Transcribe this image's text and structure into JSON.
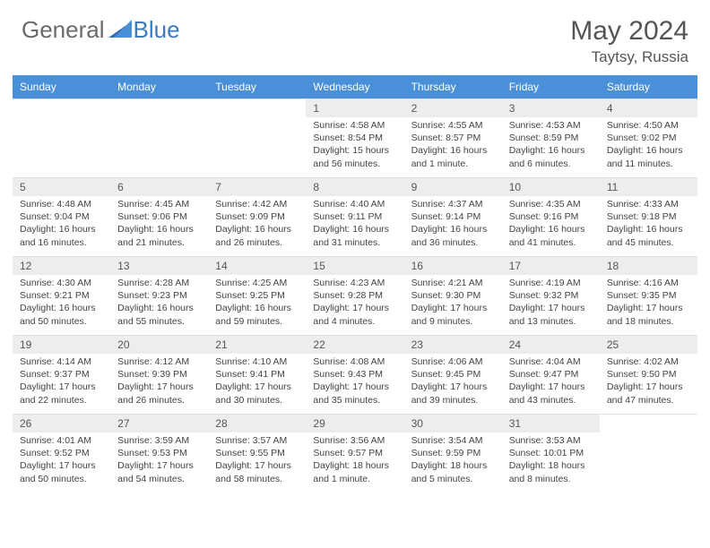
{
  "brand": {
    "general": "General",
    "blue": "Blue"
  },
  "header": {
    "month_title": "May 2024",
    "location": "Taytsy, Russia"
  },
  "colors": {
    "header_bg": "#4a90d9",
    "header_text": "#ffffff",
    "daynum_bg": "#ededed",
    "logo_gray": "#6b6b6b",
    "logo_blue": "#3b7bbf"
  },
  "weekdays": [
    "Sunday",
    "Monday",
    "Tuesday",
    "Wednesday",
    "Thursday",
    "Friday",
    "Saturday"
  ],
  "weeks": [
    [
      {
        "n": "",
        "sunrise": "",
        "sunset": "",
        "daylight": ""
      },
      {
        "n": "",
        "sunrise": "",
        "sunset": "",
        "daylight": ""
      },
      {
        "n": "",
        "sunrise": "",
        "sunset": "",
        "daylight": ""
      },
      {
        "n": "1",
        "sunrise": "Sunrise: 4:58 AM",
        "sunset": "Sunset: 8:54 PM",
        "daylight": "Daylight: 15 hours and 56 minutes."
      },
      {
        "n": "2",
        "sunrise": "Sunrise: 4:55 AM",
        "sunset": "Sunset: 8:57 PM",
        "daylight": "Daylight: 16 hours and 1 minute."
      },
      {
        "n": "3",
        "sunrise": "Sunrise: 4:53 AM",
        "sunset": "Sunset: 8:59 PM",
        "daylight": "Daylight: 16 hours and 6 minutes."
      },
      {
        "n": "4",
        "sunrise": "Sunrise: 4:50 AM",
        "sunset": "Sunset: 9:02 PM",
        "daylight": "Daylight: 16 hours and 11 minutes."
      }
    ],
    [
      {
        "n": "5",
        "sunrise": "Sunrise: 4:48 AM",
        "sunset": "Sunset: 9:04 PM",
        "daylight": "Daylight: 16 hours and 16 minutes."
      },
      {
        "n": "6",
        "sunrise": "Sunrise: 4:45 AM",
        "sunset": "Sunset: 9:06 PM",
        "daylight": "Daylight: 16 hours and 21 minutes."
      },
      {
        "n": "7",
        "sunrise": "Sunrise: 4:42 AM",
        "sunset": "Sunset: 9:09 PM",
        "daylight": "Daylight: 16 hours and 26 minutes."
      },
      {
        "n": "8",
        "sunrise": "Sunrise: 4:40 AM",
        "sunset": "Sunset: 9:11 PM",
        "daylight": "Daylight: 16 hours and 31 minutes."
      },
      {
        "n": "9",
        "sunrise": "Sunrise: 4:37 AM",
        "sunset": "Sunset: 9:14 PM",
        "daylight": "Daylight: 16 hours and 36 minutes."
      },
      {
        "n": "10",
        "sunrise": "Sunrise: 4:35 AM",
        "sunset": "Sunset: 9:16 PM",
        "daylight": "Daylight: 16 hours and 41 minutes."
      },
      {
        "n": "11",
        "sunrise": "Sunrise: 4:33 AM",
        "sunset": "Sunset: 9:18 PM",
        "daylight": "Daylight: 16 hours and 45 minutes."
      }
    ],
    [
      {
        "n": "12",
        "sunrise": "Sunrise: 4:30 AM",
        "sunset": "Sunset: 9:21 PM",
        "daylight": "Daylight: 16 hours and 50 minutes."
      },
      {
        "n": "13",
        "sunrise": "Sunrise: 4:28 AM",
        "sunset": "Sunset: 9:23 PM",
        "daylight": "Daylight: 16 hours and 55 minutes."
      },
      {
        "n": "14",
        "sunrise": "Sunrise: 4:25 AM",
        "sunset": "Sunset: 9:25 PM",
        "daylight": "Daylight: 16 hours and 59 minutes."
      },
      {
        "n": "15",
        "sunrise": "Sunrise: 4:23 AM",
        "sunset": "Sunset: 9:28 PM",
        "daylight": "Daylight: 17 hours and 4 minutes."
      },
      {
        "n": "16",
        "sunrise": "Sunrise: 4:21 AM",
        "sunset": "Sunset: 9:30 PM",
        "daylight": "Daylight: 17 hours and 9 minutes."
      },
      {
        "n": "17",
        "sunrise": "Sunrise: 4:19 AM",
        "sunset": "Sunset: 9:32 PM",
        "daylight": "Daylight: 17 hours and 13 minutes."
      },
      {
        "n": "18",
        "sunrise": "Sunrise: 4:16 AM",
        "sunset": "Sunset: 9:35 PM",
        "daylight": "Daylight: 17 hours and 18 minutes."
      }
    ],
    [
      {
        "n": "19",
        "sunrise": "Sunrise: 4:14 AM",
        "sunset": "Sunset: 9:37 PM",
        "daylight": "Daylight: 17 hours and 22 minutes."
      },
      {
        "n": "20",
        "sunrise": "Sunrise: 4:12 AM",
        "sunset": "Sunset: 9:39 PM",
        "daylight": "Daylight: 17 hours and 26 minutes."
      },
      {
        "n": "21",
        "sunrise": "Sunrise: 4:10 AM",
        "sunset": "Sunset: 9:41 PM",
        "daylight": "Daylight: 17 hours and 30 minutes."
      },
      {
        "n": "22",
        "sunrise": "Sunrise: 4:08 AM",
        "sunset": "Sunset: 9:43 PM",
        "daylight": "Daylight: 17 hours and 35 minutes."
      },
      {
        "n": "23",
        "sunrise": "Sunrise: 4:06 AM",
        "sunset": "Sunset: 9:45 PM",
        "daylight": "Daylight: 17 hours and 39 minutes."
      },
      {
        "n": "24",
        "sunrise": "Sunrise: 4:04 AM",
        "sunset": "Sunset: 9:47 PM",
        "daylight": "Daylight: 17 hours and 43 minutes."
      },
      {
        "n": "25",
        "sunrise": "Sunrise: 4:02 AM",
        "sunset": "Sunset: 9:50 PM",
        "daylight": "Daylight: 17 hours and 47 minutes."
      }
    ],
    [
      {
        "n": "26",
        "sunrise": "Sunrise: 4:01 AM",
        "sunset": "Sunset: 9:52 PM",
        "daylight": "Daylight: 17 hours and 50 minutes."
      },
      {
        "n": "27",
        "sunrise": "Sunrise: 3:59 AM",
        "sunset": "Sunset: 9:53 PM",
        "daylight": "Daylight: 17 hours and 54 minutes."
      },
      {
        "n": "28",
        "sunrise": "Sunrise: 3:57 AM",
        "sunset": "Sunset: 9:55 PM",
        "daylight": "Daylight: 17 hours and 58 minutes."
      },
      {
        "n": "29",
        "sunrise": "Sunrise: 3:56 AM",
        "sunset": "Sunset: 9:57 PM",
        "daylight": "Daylight: 18 hours and 1 minute."
      },
      {
        "n": "30",
        "sunrise": "Sunrise: 3:54 AM",
        "sunset": "Sunset: 9:59 PM",
        "daylight": "Daylight: 18 hours and 5 minutes."
      },
      {
        "n": "31",
        "sunrise": "Sunrise: 3:53 AM",
        "sunset": "Sunset: 10:01 PM",
        "daylight": "Daylight: 18 hours and 8 minutes."
      },
      {
        "n": "",
        "sunrise": "",
        "sunset": "",
        "daylight": ""
      }
    ]
  ]
}
